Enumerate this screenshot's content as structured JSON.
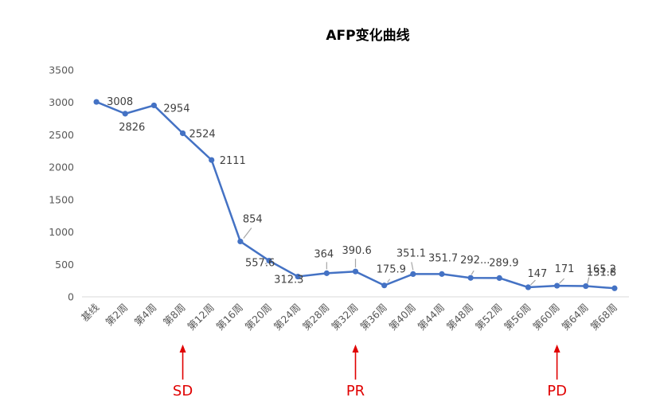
{
  "chart_data": {
    "type": "line",
    "title": "AFP变化曲线",
    "xlabel": "",
    "ylabel": "",
    "ylim": [
      0,
      3500
    ],
    "yticks": [
      0,
      500,
      1000,
      1500,
      2000,
      2500,
      3000,
      3500
    ],
    "grid": false,
    "legend": "none",
    "categories": [
      "基线",
      "第2周",
      "第4周",
      "第8周",
      "第12周",
      "第16周",
      "第20周",
      "第24周",
      "第28周",
      "第32周",
      "第36周",
      "第40周",
      "第44周",
      "第48周",
      "第52周",
      "第56周",
      "第60周",
      "第64周",
      "第68周"
    ],
    "series": [
      {
        "color": "#4472C4",
        "values": [
          3008,
          2826,
          2954,
          2524,
          2111,
          854,
          557.6,
          312.3,
          364,
          390.6,
          175.9,
          351.1,
          351.7,
          292,
          289.9,
          147,
          171,
          165.2,
          131.8
        ],
        "labels": [
          "3008",
          "2826",
          "2954",
          "2524",
          "2111",
          "854",
          "557.6",
          "312.3",
          "364",
          "390.6",
          "175.9",
          "351.1",
          "351.7",
          "292...",
          "289.9",
          "147",
          "171",
          "165.2",
          "131.8"
        ]
      }
    ],
    "annotations": [
      {
        "text": "SD",
        "category_index": 3,
        "color": "#E00000"
      },
      {
        "text": "PR",
        "category_index": 9,
        "color": "#E00000"
      },
      {
        "text": "PD",
        "category_index": 16,
        "color": "#E00000"
      }
    ]
  }
}
